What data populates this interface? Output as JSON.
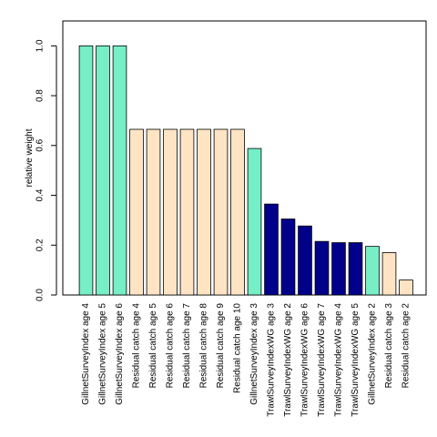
{
  "chart_data": {
    "type": "bar",
    "title": "",
    "xlabel": "",
    "ylabel": "relative weight",
    "ylim": [
      0,
      1.1
    ],
    "yticks": [
      "0.0",
      "0.2",
      "0.4",
      "0.6",
      "0.8",
      "1.0"
    ],
    "grid": false,
    "categories": [
      "GillnetSurveyIndex age 4",
      "GillnetSurveyIndex age 5",
      "GillnetSurveyIndex age 6",
      "Residual catch age 4",
      "Residual catch age 5",
      "Residual catch age 6",
      "Residual catch age 7",
      "Residual catch age 8",
      "Residual catch age 9",
      "Residual catch age 10",
      "GillnetSurveyIndex age 3",
      "TrawlSurveyIndexWG age 3",
      "TrawlSurveyIndexWG age 2",
      "TrawlSurveyIndexWG age 6",
      "TrawlSurveyIndexWG age 7",
      "TrawlSurveyIndexWG age 4",
      "TrawlSurveyIndexWG age 5",
      "GillnetSurveyIndex age 2",
      "Residual catch age 3",
      "Residual catch age 2"
    ],
    "values": [
      1.0,
      1.0,
      1.0,
      0.665,
      0.665,
      0.665,
      0.665,
      0.665,
      0.665,
      0.665,
      0.588,
      0.365,
      0.305,
      0.277,
      0.215,
      0.21,
      0.21,
      0.195,
      0.17,
      0.06
    ],
    "groups": [
      "gillnet",
      "gillnet",
      "gillnet",
      "residual",
      "residual",
      "residual",
      "residual",
      "residual",
      "residual",
      "residual",
      "gillnet",
      "trawl",
      "trawl",
      "trawl",
      "trawl",
      "trawl",
      "trawl",
      "gillnet",
      "residual",
      "residual"
    ],
    "colors": {
      "gillnet": "#76eec6",
      "residual": "#ffe4c4",
      "trawl": "#00008b",
      "outline": "#000000"
    }
  }
}
